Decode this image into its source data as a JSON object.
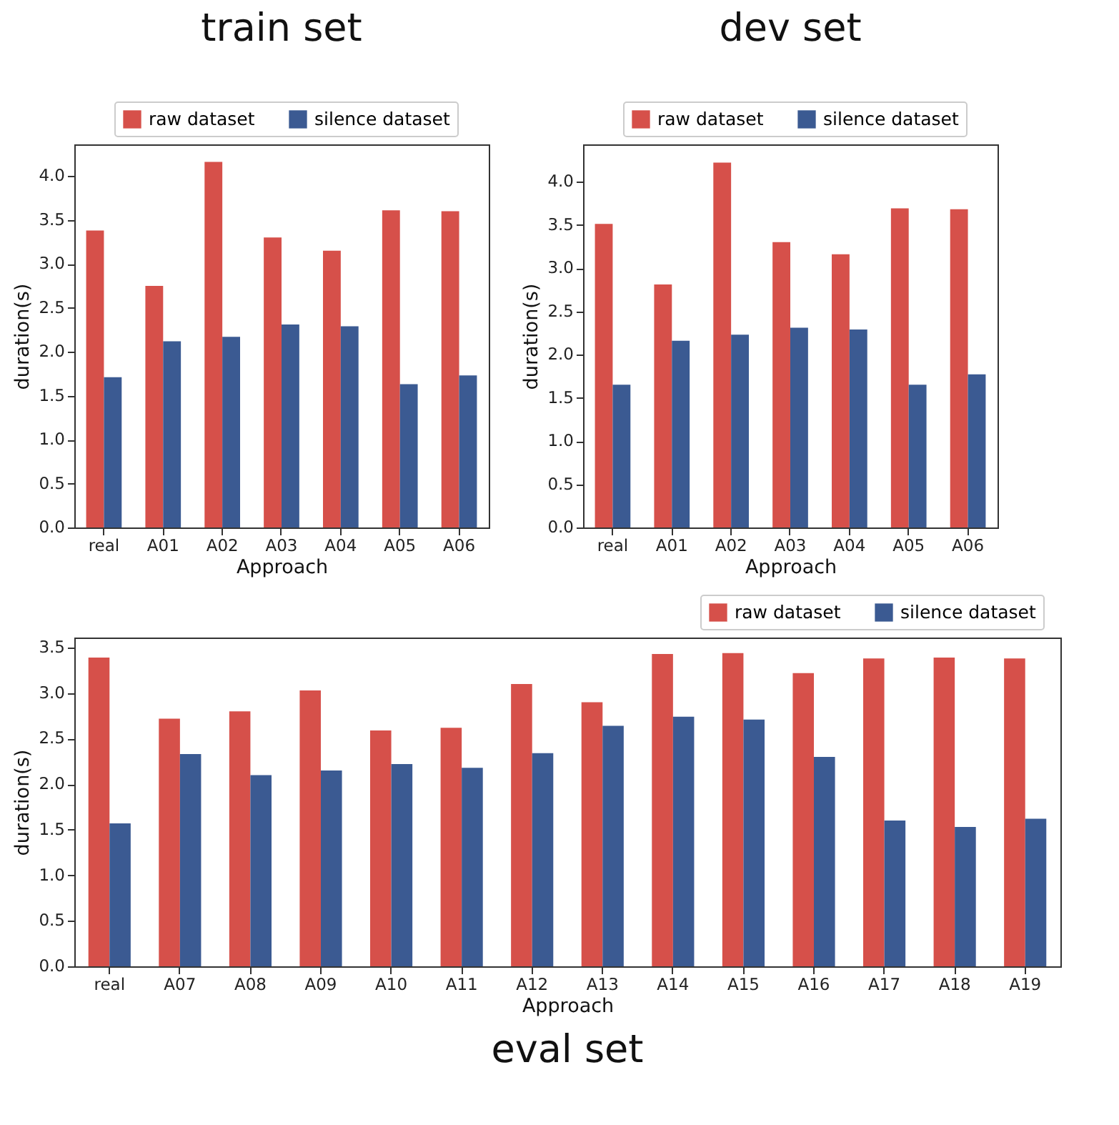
{
  "chart_data": [
    {
      "type": "bar",
      "title": "train set",
      "xlabel": "Approach",
      "ylabel": "duration(s)",
      "legend": "top right",
      "categories": [
        "real",
        "A01",
        "A02",
        "A03",
        "A04",
        "A05",
        "A06"
      ],
      "series": [
        {
          "name": "raw dataset",
          "color": "#d6504a",
          "values": [
            3.38,
            2.75,
            4.16,
            3.3,
            3.15,
            3.61,
            3.6
          ]
        },
        {
          "name": "silence dataset",
          "color": "#3b5a92",
          "values": [
            1.71,
            2.12,
            2.17,
            2.31,
            2.29,
            1.63,
            1.73
          ]
        }
      ],
      "ylim": [
        0,
        4.36
      ],
      "yticks": [
        {
          "value": 0,
          "label": "0.0"
        },
        {
          "value": 0.5,
          "label": "0.5"
        },
        {
          "value": 1,
          "label": "1.0"
        },
        {
          "value": 1.5,
          "label": "1.5"
        },
        {
          "value": 2,
          "label": "2.0"
        },
        {
          "value": 2.5,
          "label": "2.5"
        },
        {
          "value": 3,
          "label": "3.0"
        },
        {
          "value": 3.5,
          "label": "3.5"
        },
        {
          "value": 4,
          "label": "4.0"
        }
      ]
    },
    {
      "type": "bar",
      "title": "dev set",
      "xlabel": "Approach",
      "ylabel": "duration(s)",
      "legend": "top right",
      "categories": [
        "real",
        "A01",
        "A02",
        "A03",
        "A04",
        "A05",
        "A06"
      ],
      "series": [
        {
          "name": "raw dataset",
          "color": "#d6504a",
          "values": [
            3.51,
            2.81,
            4.22,
            3.3,
            3.16,
            3.69,
            3.68
          ]
        },
        {
          "name": "silence dataset",
          "color": "#3b5a92",
          "values": [
            1.65,
            2.16,
            2.23,
            2.31,
            2.29,
            1.65,
            1.77
          ]
        }
      ],
      "ylim": [
        0,
        4.43
      ],
      "yticks": [
        {
          "value": 0,
          "label": "0.0"
        },
        {
          "value": 0.5,
          "label": "0.5"
        },
        {
          "value": 1,
          "label": "1.0"
        },
        {
          "value": 1.5,
          "label": "1.5"
        },
        {
          "value": 2,
          "label": "2.0"
        },
        {
          "value": 2.5,
          "label": "2.5"
        },
        {
          "value": 3,
          "label": "3.0"
        },
        {
          "value": 3.5,
          "label": "3.5"
        },
        {
          "value": 4,
          "label": "4.0"
        }
      ]
    },
    {
      "type": "bar",
      "title": "eval set",
      "xlabel": "Approach",
      "ylabel": "duration(s)",
      "legend": "top right",
      "categories": [
        "real",
        "A07",
        "A08",
        "A09",
        "A10",
        "A11",
        "A12",
        "A13",
        "A14",
        "A15",
        "A16",
        "A17",
        "A18",
        "A19"
      ],
      "series": [
        {
          "name": "raw dataset",
          "color": "#d6504a",
          "values": [
            3.39,
            2.72,
            2.8,
            3.03,
            2.59,
            2.62,
            3.1,
            2.9,
            3.43,
            3.44,
            3.22,
            3.38,
            3.39,
            3.38
          ]
        },
        {
          "name": "silence dataset",
          "color": "#3b5a92",
          "values": [
            1.57,
            2.33,
            2.1,
            2.15,
            2.22,
            2.18,
            2.34,
            2.64,
            2.74,
            2.71,
            2.3,
            1.6,
            1.53,
            1.62
          ]
        }
      ],
      "ylim": [
        0,
        3.61
      ],
      "yticks": [
        {
          "value": 0,
          "label": "0.0"
        },
        {
          "value": 0.5,
          "label": "0.5"
        },
        {
          "value": 1,
          "label": "1.0"
        },
        {
          "value": 1.5,
          "label": "1.5"
        },
        {
          "value": 2,
          "label": "2.0"
        },
        {
          "value": 2.5,
          "label": "2.5"
        },
        {
          "value": 3,
          "label": "3.0"
        },
        {
          "value": 3.5,
          "label": "3.5"
        }
      ]
    }
  ]
}
